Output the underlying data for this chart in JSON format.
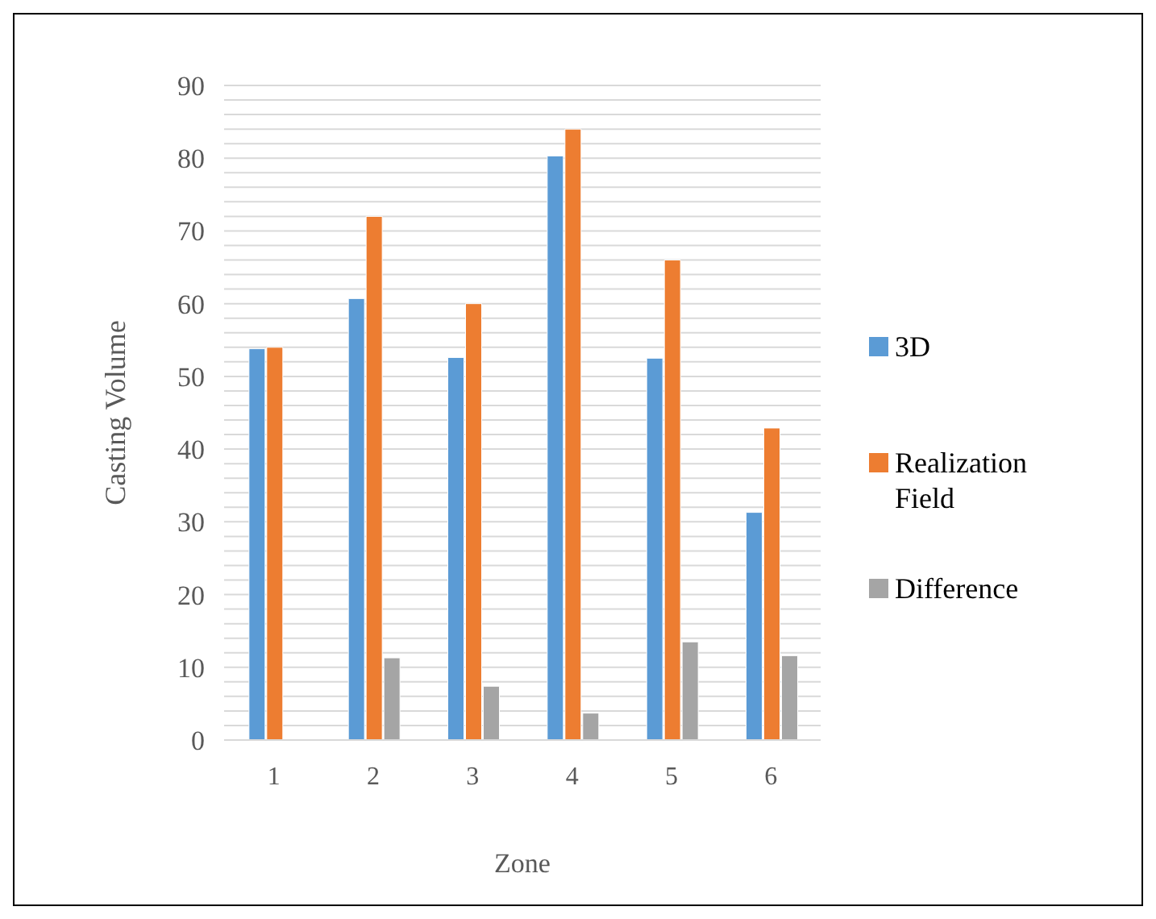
{
  "chart_data": {
    "type": "bar",
    "xlabel": "Zone",
    "ylabel": "Casting Volume",
    "categories": [
      "1",
      "2",
      "3",
      "4",
      "5",
      "6"
    ],
    "series": [
      {
        "name": "3D",
        "color": "#5b9bd5",
        "values": [
          53.8,
          60.7,
          52.6,
          80.3,
          52.5,
          31.3
        ]
      },
      {
        "name": "Realization Field",
        "color": "#ed7d31",
        "values": [
          54,
          72,
          60,
          84,
          66,
          42.9
        ]
      },
      {
        "name": "Difference",
        "color": "#a5a5a5",
        "values": [
          null,
          11.3,
          7.4,
          3.7,
          13.5,
          11.6
        ]
      }
    ],
    "ylim": [
      0,
      90
    ],
    "yticks": [
      0,
      {
        "value": 2,
        "label": null
      },
      {
        "value": 4,
        "label": null
      },
      {
        "value": 6,
        "label": null
      },
      {
        "value": 8,
        "label": null
      },
      10,
      {
        "value": 12,
        "label": null
      },
      {
        "value": 14,
        "label": null
      },
      {
        "value": 16,
        "label": null
      },
      {
        "value": 18,
        "label": null
      },
      20,
      {
        "value": 22,
        "label": null
      },
      {
        "value": 24,
        "label": null
      },
      {
        "value": 26,
        "label": null
      },
      {
        "value": 28,
        "label": null
      },
      30,
      {
        "value": 32,
        "label": null
      },
      {
        "value": 34,
        "label": null
      },
      {
        "value": 36,
        "label": null
      },
      {
        "value": 38,
        "label": null
      },
      40,
      {
        "value": 42,
        "label": null
      },
      {
        "value": 44,
        "label": null
      },
      {
        "value": 46,
        "label": null
      },
      {
        "value": 48,
        "label": null
      },
      50,
      {
        "value": 52,
        "label": null
      },
      {
        "value": 54,
        "label": null
      },
      {
        "value": 56,
        "label": null
      },
      {
        "value": 58,
        "label": null
      },
      60,
      {
        "value": 62,
        "label": null
      },
      {
        "value": 64,
        "label": null
      },
      {
        "value": 66,
        "label": null
      },
      {
        "value": 68,
        "label": null
      },
      70,
      {
        "value": 72,
        "label": null
      },
      {
        "value": 74,
        "label": null
      },
      {
        "value": 76,
        "label": null
      },
      {
        "value": 78,
        "label": null
      },
      80,
      {
        "value": 82,
        "label": null
      },
      {
        "value": 84,
        "label": null
      },
      {
        "value": 86,
        "label": null
      },
      {
        "value": 88,
        "label": null
      },
      90
    ],
    "grid": "y",
    "legend": "right"
  }
}
